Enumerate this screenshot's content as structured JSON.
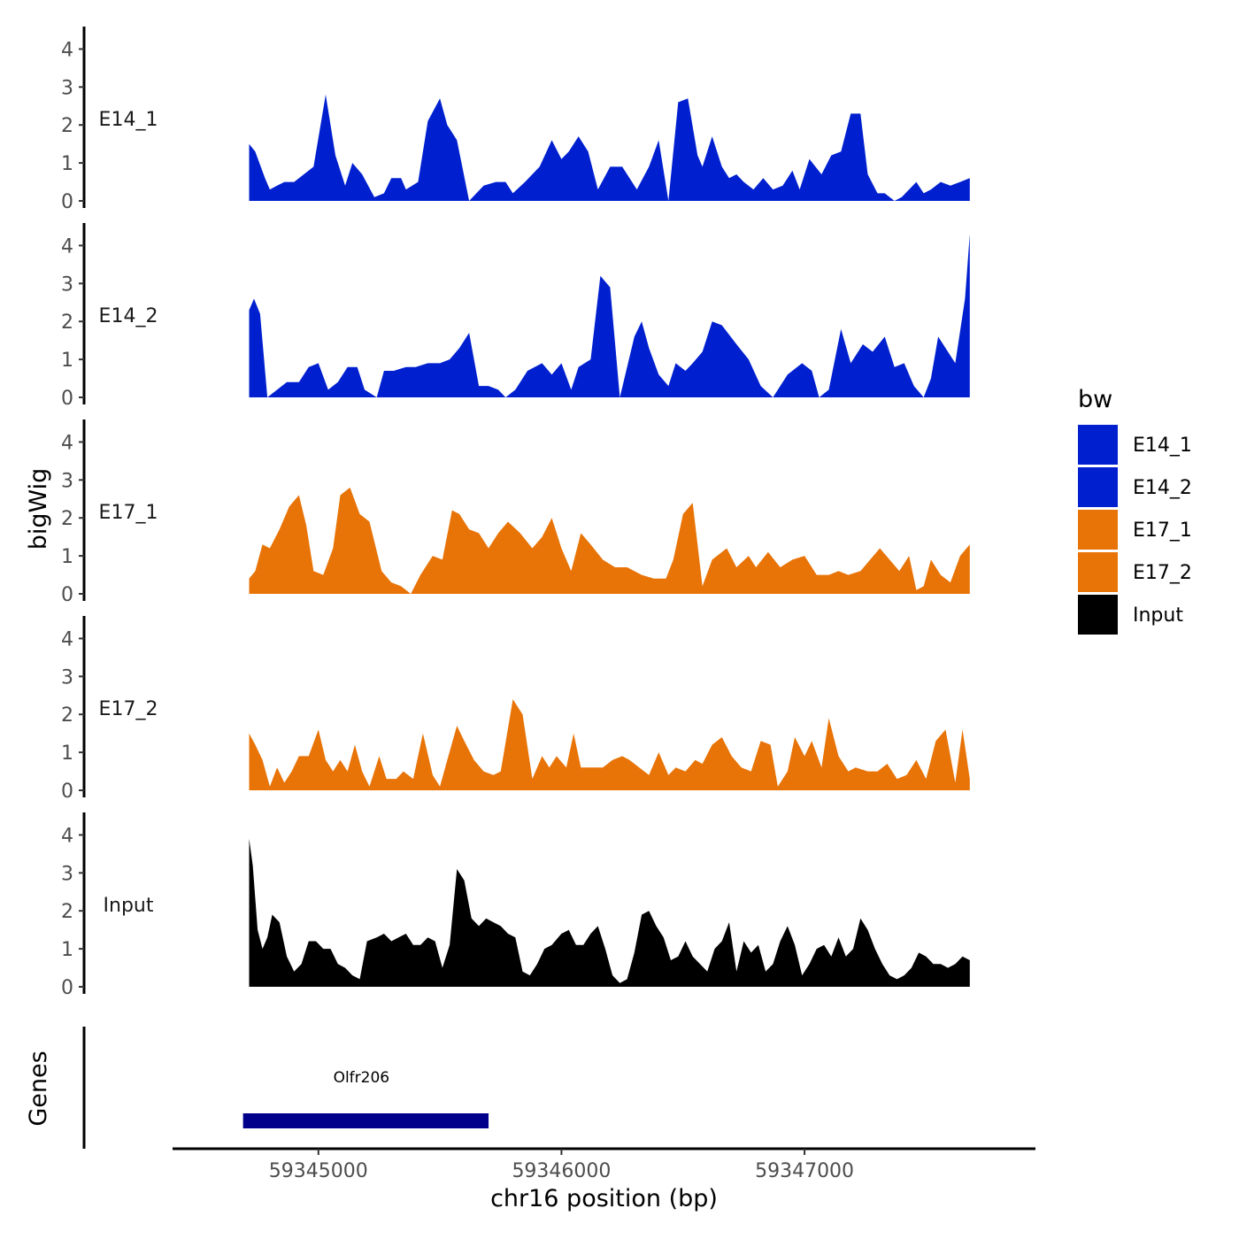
{
  "chart_data": {
    "type": "area",
    "xlabel": "chr16 position (bp)",
    "ylabel": "bigWig",
    "genes_axis_label": "Genes",
    "xlim": [
      59344400,
      59347950
    ],
    "data_x_range": [
      59344715,
      59347680
    ],
    "xticks": [
      59345000,
      59346000,
      59347000
    ],
    "xtick_labels": [
      "59345000",
      "59346000",
      "59347000"
    ],
    "ylim": [
      0,
      4.5
    ],
    "yticks": [
      0,
      1,
      2,
      3,
      4
    ],
    "ytick_labels": [
      "0",
      "1",
      "2",
      "3",
      "4"
    ],
    "legend": {
      "title": "bw",
      "entries": [
        {
          "label": "E14_1",
          "color": "#0020D0"
        },
        {
          "label": "E14_2",
          "color": "#0020D0"
        },
        {
          "label": "E17_1",
          "color": "#E87306"
        },
        {
          "label": "E17_2",
          "color": "#E87306"
        },
        {
          "label": "Input",
          "color": "#000000"
        }
      ]
    },
    "series": [
      {
        "name": "E14_1",
        "color": "#0020D0",
        "x": [
          59344715,
          59344740,
          59344780,
          59344800,
          59344830,
          59344860,
          59344900,
          59344940,
          59344980,
          59345030,
          59345070,
          59345110,
          59345140,
          59345180,
          59345230,
          59345270,
          59345300,
          59345340,
          59345360,
          59345410,
          59345450,
          59345500,
          59345530,
          59345570,
          59345620,
          59345680,
          59345730,
          59345770,
          59345800,
          59345850,
          59345910,
          59345960,
          59346000,
          59346030,
          59346070,
          59346110,
          59346150,
          59346200,
          59346250,
          59346310,
          59346360,
          59346400,
          59346440,
          59346480,
          59346520,
          59346560,
          59346580,
          59346620,
          59346660,
          59346690,
          59346720,
          59346750,
          59346790,
          59346830,
          59346870,
          59346910,
          59346950,
          59346980,
          59347020,
          59347070,
          59347110,
          59347150,
          59347190,
          59347230,
          59347260,
          59347300,
          59347330,
          59347370,
          59347400,
          59347430,
          59347460,
          59347490,
          59347520,
          59347560,
          59347600,
          59347640,
          59347680
        ],
        "y": [
          1.5,
          1.3,
          0.6,
          0.3,
          0.4,
          0.5,
          0.5,
          0.7,
          0.9,
          2.8,
          1.2,
          0.4,
          1.0,
          0.7,
          0.1,
          0.2,
          0.6,
          0.6,
          0.3,
          0.5,
          2.1,
          2.7,
          2.0,
          1.6,
          0.0,
          0.4,
          0.5,
          0.5,
          0.2,
          0.5,
          0.9,
          1.6,
          1.1,
          1.3,
          1.7,
          1.3,
          0.3,
          0.9,
          0.9,
          0.3,
          0.9,
          1.6,
          0.0,
          2.6,
          2.7,
          1.2,
          0.9,
          1.7,
          0.9,
          0.6,
          0.7,
          0.5,
          0.3,
          0.6,
          0.3,
          0.4,
          0.8,
          0.3,
          1.1,
          0.7,
          1.2,
          1.3,
          2.3,
          2.3,
          0.7,
          0.2,
          0.2,
          0.0,
          0.1,
          0.3,
          0.5,
          0.2,
          0.3,
          0.5,
          0.4,
          0.5,
          0.6
        ]
      },
      {
        "name": "E14_2",
        "color": "#0020D0",
        "x": [
          59344715,
          59344735,
          59344760,
          59344790,
          59344830,
          59344870,
          59344920,
          59344960,
          59345000,
          59345040,
          59345080,
          59345120,
          59345160,
          59345190,
          59345240,
          59345270,
          59345310,
          59345360,
          59345400,
          59345450,
          59345500,
          59345540,
          59345580,
          59345620,
          59345660,
          59345700,
          59345740,
          59345770,
          59345810,
          59345860,
          59345920,
          59345960,
          59346000,
          59346040,
          59346070,
          59346120,
          59346160,
          59346200,
          59346240,
          59346300,
          59346330,
          59346360,
          59346400,
          59346440,
          59346470,
          59346510,
          59346540,
          59346580,
          59346620,
          59346660,
          59346720,
          59346770,
          59346820,
          59346870,
          59346930,
          59346990,
          59347030,
          59347060,
          59347100,
          59347150,
          59347190,
          59347240,
          59347280,
          59347330,
          59347370,
          59347410,
          59347450,
          59347490,
          59347520,
          59347550,
          59347580,
          59347620,
          59347660,
          59347680
        ],
        "y": [
          2.3,
          2.6,
          2.2,
          0.0,
          0.2,
          0.4,
          0.4,
          0.8,
          0.9,
          0.2,
          0.4,
          0.8,
          0.8,
          0.2,
          0.0,
          0.7,
          0.7,
          0.8,
          0.8,
          0.9,
          0.9,
          1.0,
          1.3,
          1.7,
          0.3,
          0.3,
          0.2,
          0.0,
          0.2,
          0.7,
          0.9,
          0.6,
          0.9,
          0.2,
          0.8,
          1.0,
          3.2,
          2.9,
          0.0,
          1.6,
          2.0,
          1.3,
          0.6,
          0.3,
          0.9,
          0.7,
          0.9,
          1.2,
          2.0,
          1.9,
          1.4,
          1.0,
          0.3,
          0.0,
          0.6,
          0.9,
          0.7,
          0.0,
          0.2,
          1.8,
          0.9,
          1.4,
          1.2,
          1.6,
          0.8,
          0.9,
          0.3,
          0.0,
          0.5,
          1.6,
          1.3,
          0.9,
          2.6,
          4.3
        ]
      },
      {
        "name": "E17_1",
        "color": "#E87306",
        "x": [
          59344715,
          59344740,
          59344770,
          59344800,
          59344840,
          59344880,
          59344920,
          59344950,
          59344980,
          59345020,
          59345060,
          59345090,
          59345130,
          59345170,
          59345210,
          59345260,
          59345300,
          59345340,
          59345380,
          59345420,
          59345470,
          59345510,
          59345550,
          59345580,
          59345620,
          59345660,
          59345700,
          59345740,
          59345780,
          59345830,
          59345880,
          59345920,
          59345960,
          59346000,
          59346040,
          59346080,
          59346120,
          59346170,
          59346220,
          59346270,
          59346330,
          59346380,
          59346430,
          59346460,
          59346500,
          59346540,
          59346580,
          59346620,
          59346680,
          59346720,
          59346770,
          59346800,
          59346850,
          59346900,
          59346950,
          59347000,
          59347050,
          59347100,
          59347140,
          59347180,
          59347230,
          59347270,
          59347310,
          59347350,
          59347390,
          59347430,
          59347460,
          59347490,
          59347520,
          59347560,
          59347600,
          59347640,
          59347680
        ],
        "y": [
          0.4,
          0.6,
          1.3,
          1.2,
          1.7,
          2.3,
          2.6,
          1.8,
          0.6,
          0.5,
          1.2,
          2.6,
          2.8,
          2.1,
          1.9,
          0.6,
          0.3,
          0.2,
          0.0,
          0.5,
          1.0,
          0.9,
          2.2,
          2.1,
          1.7,
          1.6,
          1.2,
          1.6,
          1.9,
          1.6,
          1.2,
          1.5,
          2.0,
          1.2,
          0.6,
          1.6,
          1.3,
          0.9,
          0.7,
          0.7,
          0.5,
          0.4,
          0.4,
          0.9,
          2.1,
          2.4,
          0.2,
          0.9,
          1.2,
          0.7,
          1.0,
          0.7,
          1.1,
          0.7,
          0.9,
          1.0,
          0.5,
          0.5,
          0.6,
          0.5,
          0.6,
          0.9,
          1.2,
          0.9,
          0.6,
          1.0,
          0.1,
          0.2,
          0.9,
          0.5,
          0.3,
          1.0,
          1.3
        ]
      },
      {
        "name": "E17_2",
        "color": "#E87306",
        "x": [
          59344715,
          59344740,
          59344770,
          59344800,
          59344830,
          59344860,
          59344890,
          59344920,
          59344960,
          59345000,
          59345030,
          59345060,
          59345090,
          59345120,
          59345150,
          59345180,
          59345210,
          59345250,
          59345280,
          59345320,
          59345350,
          59345390,
          59345430,
          59345470,
          59345500,
          59345530,
          59345570,
          59345600,
          59345640,
          59345680,
          59345720,
          59345750,
          59345800,
          59345840,
          59345880,
          59345920,
          59345950,
          59345980,
          59346020,
          59346050,
          59346080,
          59346120,
          59346170,
          59346210,
          59346250,
          59346280,
          59346320,
          59346360,
          59346400,
          59346440,
          59346470,
          59346510,
          59346550,
          59346580,
          59346620,
          59346660,
          59346700,
          59346740,
          59346780,
          59346820,
          59346860,
          59346890,
          59346930,
          59346960,
          59347000,
          59347030,
          59347070,
          59347100,
          59347140,
          59347180,
          59347210,
          59347260,
          59347300,
          59347340,
          59347380,
          59347420,
          59347460,
          59347500,
          59347540,
          59347580,
          59347620,
          59347650,
          59347680
        ],
        "y": [
          1.5,
          1.2,
          0.8,
          0.1,
          0.6,
          0.2,
          0.5,
          0.9,
          0.9,
          1.6,
          0.8,
          0.5,
          0.8,
          0.5,
          1.2,
          0.5,
          0.1,
          0.9,
          0.3,
          0.3,
          0.5,
          0.3,
          1.5,
          0.4,
          0.1,
          0.8,
          1.7,
          1.3,
          0.8,
          0.5,
          0.4,
          0.5,
          2.4,
          2.0,
          0.3,
          0.9,
          0.6,
          0.9,
          0.6,
          1.5,
          0.6,
          0.6,
          0.6,
          0.8,
          0.9,
          0.8,
          0.6,
          0.4,
          1.0,
          0.4,
          0.6,
          0.5,
          0.8,
          0.7,
          1.2,
          1.4,
          0.9,
          0.6,
          0.5,
          1.3,
          1.2,
          0.1,
          0.5,
          1.4,
          0.9,
          1.3,
          0.6,
          1.9,
          0.9,
          0.5,
          0.6,
          0.5,
          0.5,
          0.7,
          0.3,
          0.4,
          0.8,
          0.3,
          1.3,
          1.6,
          0.2,
          1.6,
          0.3
        ]
      },
      {
        "name": "Input",
        "color": "#000000",
        "x": [
          59344715,
          59344730,
          59344750,
          59344770,
          59344790,
          59344810,
          59344840,
          59344870,
          59344900,
          59344930,
          59344960,
          59344990,
          59345020,
          59345050,
          59345080,
          59345110,
          59345140,
          59345170,
          59345200,
          59345240,
          59345270,
          59345300,
          59345330,
          59345360,
          59345390,
          59345420,
          59345450,
          59345480,
          59345510,
          59345540,
          59345570,
          59345600,
          59345630,
          59345660,
          59345690,
          59345720,
          59345750,
          59345780,
          59345810,
          59345840,
          59345870,
          59345900,
          59345930,
          59345960,
          59346000,
          59346030,
          59346060,
          59346090,
          59346120,
          59346150,
          59346180,
          59346210,
          59346240,
          59346270,
          59346300,
          59346330,
          59346360,
          59346390,
          59346420,
          59346450,
          59346480,
          59346510,
          59346540,
          59346570,
          59346600,
          59346630,
          59346660,
          59346690,
          59346720,
          59346750,
          59346780,
          59346810,
          59346840,
          59346870,
          59346900,
          59346930,
          59346960,
          59346990,
          59347020,
          59347050,
          59347080,
          59347110,
          59347140,
          59347170,
          59347200,
          59347230,
          59347260,
          59347290,
          59347320,
          59347350,
          59347380,
          59347410,
          59347440,
          59347470,
          59347500,
          59347530,
          59347560,
          59347590,
          59347620,
          59347650,
          59347680
        ],
        "y": [
          3.9,
          3.2,
          1.5,
          1.0,
          1.3,
          1.9,
          1.7,
          0.8,
          0.4,
          0.6,
          1.2,
          1.2,
          1.0,
          1.0,
          0.6,
          0.5,
          0.3,
          0.2,
          1.2,
          1.3,
          1.4,
          1.2,
          1.3,
          1.4,
          1.1,
          1.1,
          1.3,
          1.2,
          0.5,
          1.1,
          3.1,
          2.8,
          1.8,
          1.6,
          1.8,
          1.7,
          1.6,
          1.4,
          1.3,
          0.4,
          0.3,
          0.6,
          1.0,
          1.1,
          1.4,
          1.5,
          1.1,
          1.1,
          1.4,
          1.6,
          1.0,
          0.3,
          0.1,
          0.2,
          0.9,
          1.9,
          2.0,
          1.6,
          1.3,
          0.7,
          0.8,
          1.2,
          0.8,
          0.6,
          0.4,
          1.0,
          1.2,
          1.7,
          0.4,
          1.2,
          0.9,
          1.1,
          0.4,
          0.6,
          1.2,
          1.6,
          1.1,
          0.3,
          0.6,
          1.0,
          1.1,
          0.8,
          1.3,
          0.8,
          1.0,
          1.8,
          1.5,
          1.0,
          0.6,
          0.3,
          0.2,
          0.3,
          0.5,
          0.9,
          0.8,
          0.6,
          0.6,
          0.5,
          0.6,
          0.8,
          0.7
        ]
      }
    ],
    "genes": [
      {
        "name": "Olfr206",
        "start": 59344690,
        "end": 59345700,
        "color": "#00008B"
      }
    ]
  }
}
